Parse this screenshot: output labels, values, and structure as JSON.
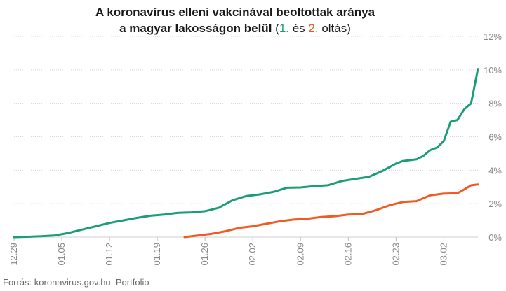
{
  "title": {
    "line1": "A koronavírus elleni vakcinával beoltottak aránya",
    "line2_main": "a magyar lakosságon belül",
    "paren_open": " (",
    "series1_label": "1.",
    "and_word": " és ",
    "series2_label": "2.",
    "dose_word": " oltás)"
  },
  "source": "Forrás: koronavirus.gov.hu, Portfolio",
  "chart_data": {
    "type": "line",
    "ylim": [
      0,
      12
    ],
    "y_ticks": [
      "0%",
      "2%",
      "4%",
      "6%",
      "8%",
      "10%",
      "12%"
    ],
    "y_tick_values": [
      0,
      2,
      4,
      6,
      8,
      10,
      12
    ],
    "x_ticks": [
      "12.29",
      "01.05",
      "01.12",
      "01.19",
      "01.26",
      "02.02",
      "02.09",
      "02.16",
      "02.23",
      "03.02"
    ],
    "x_range": [
      "12.29",
      "03.07"
    ],
    "series": [
      {
        "color": "#1a9e77",
        "x": [
          "12.29",
          "12.31",
          "01.02",
          "01.04",
          "01.06",
          "01.08",
          "01.10",
          "01.12",
          "01.14",
          "01.16",
          "01.18",
          "01.20",
          "01.22",
          "01.24",
          "01.26",
          "01.28",
          "01.30",
          "02.01",
          "02.03",
          "02.05",
          "02.07",
          "02.09",
          "02.11",
          "02.13",
          "02.15",
          "02.17",
          "02.19",
          "02.21",
          "02.23",
          "02.24",
          "02.25",
          "02.26",
          "02.27",
          "02.28",
          "03.01",
          "03.02",
          "03.03",
          "03.04",
          "03.05",
          "03.06",
          "03.07"
        ],
        "values": [
          0.0,
          0.02,
          0.05,
          0.1,
          0.25,
          0.45,
          0.65,
          0.85,
          1.0,
          1.15,
          1.28,
          1.35,
          1.45,
          1.48,
          1.55,
          1.75,
          2.2,
          2.45,
          2.55,
          2.7,
          2.95,
          2.97,
          3.05,
          3.1,
          3.35,
          3.48,
          3.6,
          3.95,
          4.4,
          4.55,
          4.6,
          4.65,
          4.85,
          5.2,
          5.35,
          5.75,
          6.9,
          7.0,
          7.65,
          8.0,
          10.05
        ]
      },
      {
        "color": "#f15a22",
        "x": [
          "01.23",
          "01.25",
          "01.27",
          "01.29",
          "01.31",
          "02.02",
          "02.04",
          "02.06",
          "02.08",
          "02.10",
          "02.12",
          "02.14",
          "02.16",
          "02.18",
          "02.20",
          "02.22",
          "02.24",
          "02.26",
          "02.28",
          "03.02",
          "03.04",
          "03.05",
          "03.06",
          "03.07"
        ],
        "values": [
          0.0,
          0.1,
          0.2,
          0.35,
          0.55,
          0.65,
          0.8,
          0.95,
          1.05,
          1.1,
          1.2,
          1.25,
          1.35,
          1.38,
          1.6,
          1.9,
          2.1,
          2.15,
          2.5,
          2.6,
          2.62,
          2.85,
          3.1,
          3.15
        ]
      }
    ]
  }
}
